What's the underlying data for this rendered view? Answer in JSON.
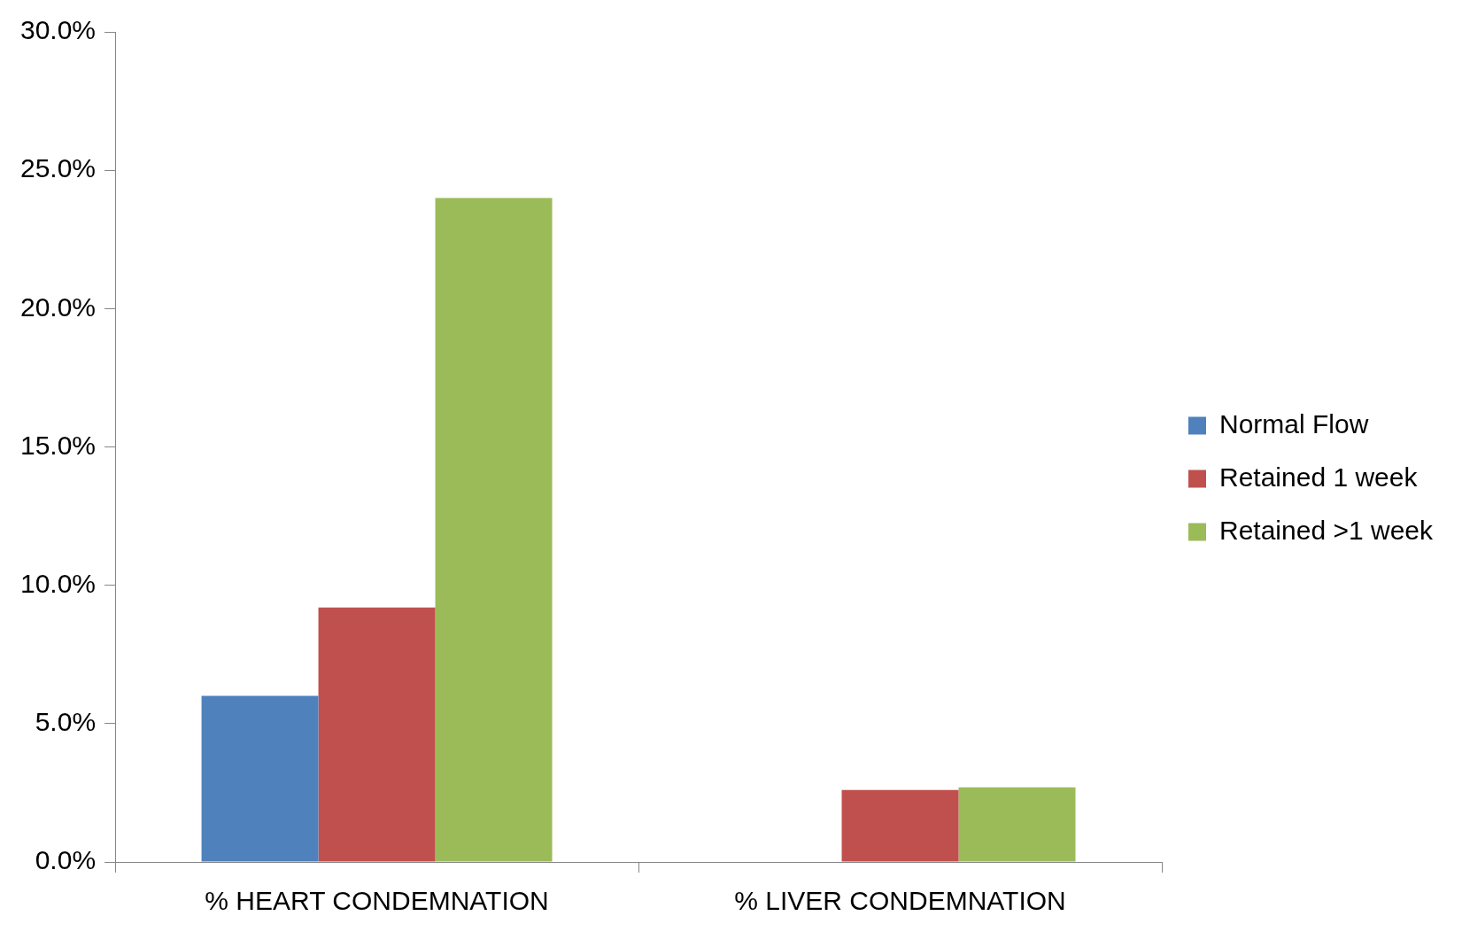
{
  "chart_data": {
    "type": "bar",
    "categories": [
      "% HEART CONDEMNATION",
      "% LIVER CONDEMNATION"
    ],
    "series": [
      {
        "name": "Normal Flow",
        "color": "#4f81bd",
        "values": [
          6.0,
          0
        ]
      },
      {
        "name": "Retained 1 week",
        "color": "#c0504d",
        "values": [
          9.2,
          2.6
        ]
      },
      {
        "name": "Retained >1 week",
        "color": "#9bbb59",
        "values": [
          24.0,
          2.7
        ]
      }
    ],
    "ylim": [
      0,
      30
    ],
    "yticks": [
      {
        "value": 0,
        "label": "0.0%"
      },
      {
        "value": 5,
        "label": "5.0%"
      },
      {
        "value": 10,
        "label": "10.0%"
      },
      {
        "value": 15,
        "label": "15.0%"
      },
      {
        "value": 20,
        "label": "20.0%"
      },
      {
        "value": 25,
        "label": "25.0%"
      },
      {
        "value": 30,
        "label": "30.0%"
      }
    ],
    "grid": false,
    "legend": "right"
  }
}
